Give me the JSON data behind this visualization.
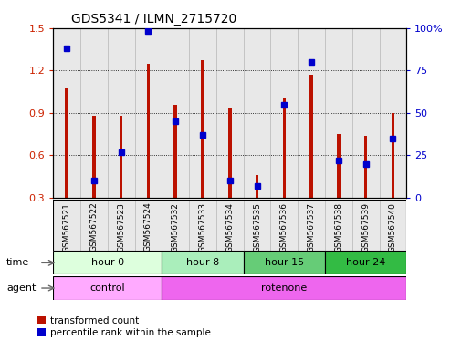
{
  "title": "GDS5341 / ILMN_2715720",
  "samples": [
    "GSM567521",
    "GSM567522",
    "GSM567523",
    "GSM567524",
    "GSM567532",
    "GSM567533",
    "GSM567534",
    "GSM567535",
    "GSM567536",
    "GSM567537",
    "GSM567538",
    "GSM567539",
    "GSM567540"
  ],
  "red_values": [
    1.08,
    0.88,
    0.88,
    1.25,
    0.96,
    1.27,
    0.93,
    0.46,
    1.0,
    1.17,
    0.75,
    0.74,
    0.9
  ],
  "blue_values_pct": [
    88,
    10,
    27,
    98,
    45,
    37,
    10,
    7,
    55,
    80,
    22,
    20,
    35
  ],
  "ylim_left": [
    0.3,
    1.5
  ],
  "ylim_right": [
    0,
    100
  ],
  "yticks_left": [
    0.3,
    0.6,
    0.9,
    1.2,
    1.5
  ],
  "yticks_right": [
    0,
    25,
    50,
    75,
    100
  ],
  "left_color": "#cc2200",
  "right_color": "#0000cc",
  "bar_color": "#bb1100",
  "dot_color": "#0000cc",
  "background_color": "#ffffff",
  "time_groups": [
    {
      "label": "hour 0",
      "start": 0,
      "end": 4,
      "color": "#ddffdd"
    },
    {
      "label": "hour 8",
      "start": 4,
      "end": 7,
      "color": "#aaeebb"
    },
    {
      "label": "hour 15",
      "start": 7,
      "end": 10,
      "color": "#66cc77"
    },
    {
      "label": "hour 24",
      "start": 10,
      "end": 13,
      "color": "#33bb44"
    }
  ],
  "agent_groups": [
    {
      "label": "control",
      "start": 0,
      "end": 4,
      "color": "#ffaaff"
    },
    {
      "label": "rotenone",
      "start": 4,
      "end": 13,
      "color": "#ee66ee"
    }
  ],
  "legend_red": "transformed count",
  "legend_blue": "percentile rank within the sample",
  "time_label": "time",
  "agent_label": "agent",
  "bar_width": 0.12
}
